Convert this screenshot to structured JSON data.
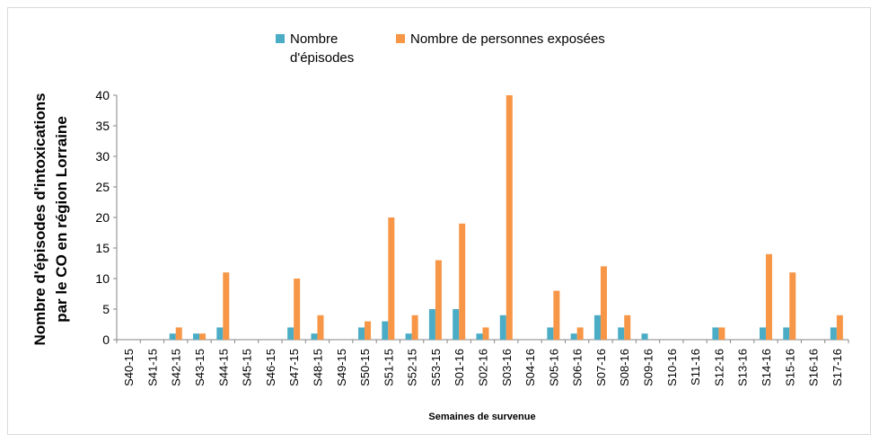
{
  "chart_data": {
    "type": "bar",
    "y_label": [
      "Nombre d'épisodes d'intoxications",
      "par le  CO  en région Lorraine"
    ],
    "x_label": "Semaines de survenue",
    "categories": [
      "S40-15",
      "S41-15",
      "S42-15",
      "S43-15",
      "S44-15",
      "S45-15",
      "S46-15",
      "S47-15",
      "S48-15",
      "S49-15",
      "S50-15",
      "S51-15",
      "S52-15",
      "S53-15",
      "S01-16",
      "S02-16",
      "S03-16",
      "S04-16",
      "S05-16",
      "S06-16",
      "S07-16",
      "S08-16",
      "S09-16",
      "S10-16",
      "S11-16",
      "S12-16",
      "S13-16",
      "S14-16",
      "S15-16",
      "S16-16",
      "S17-16"
    ],
    "series": [
      {
        "name": "Nombre d'épisodes",
        "color": "#4bacc6",
        "values": [
          0,
          0,
          1,
          1,
          2,
          0,
          0,
          2,
          1,
          0,
          2,
          3,
          1,
          5,
          5,
          1,
          4,
          0,
          2,
          1,
          4,
          2,
          1,
          0,
          0,
          2,
          0,
          2,
          2,
          0,
          2
        ]
      },
      {
        "name": "Nombre de personnes exposées",
        "color": "#f79646",
        "values": [
          0,
          0,
          2,
          1,
          11,
          0,
          0,
          10,
          4,
          0,
          3,
          20,
          4,
          13,
          19,
          2,
          40,
          0,
          8,
          2,
          12,
          4,
          0,
          0,
          0,
          2,
          0,
          14,
          11,
          0,
          4
        ]
      }
    ],
    "ylim": [
      0,
      40
    ],
    "yticks": [
      0,
      5,
      10,
      15,
      20,
      25,
      30,
      35,
      40
    ],
    "legend": "top"
  }
}
